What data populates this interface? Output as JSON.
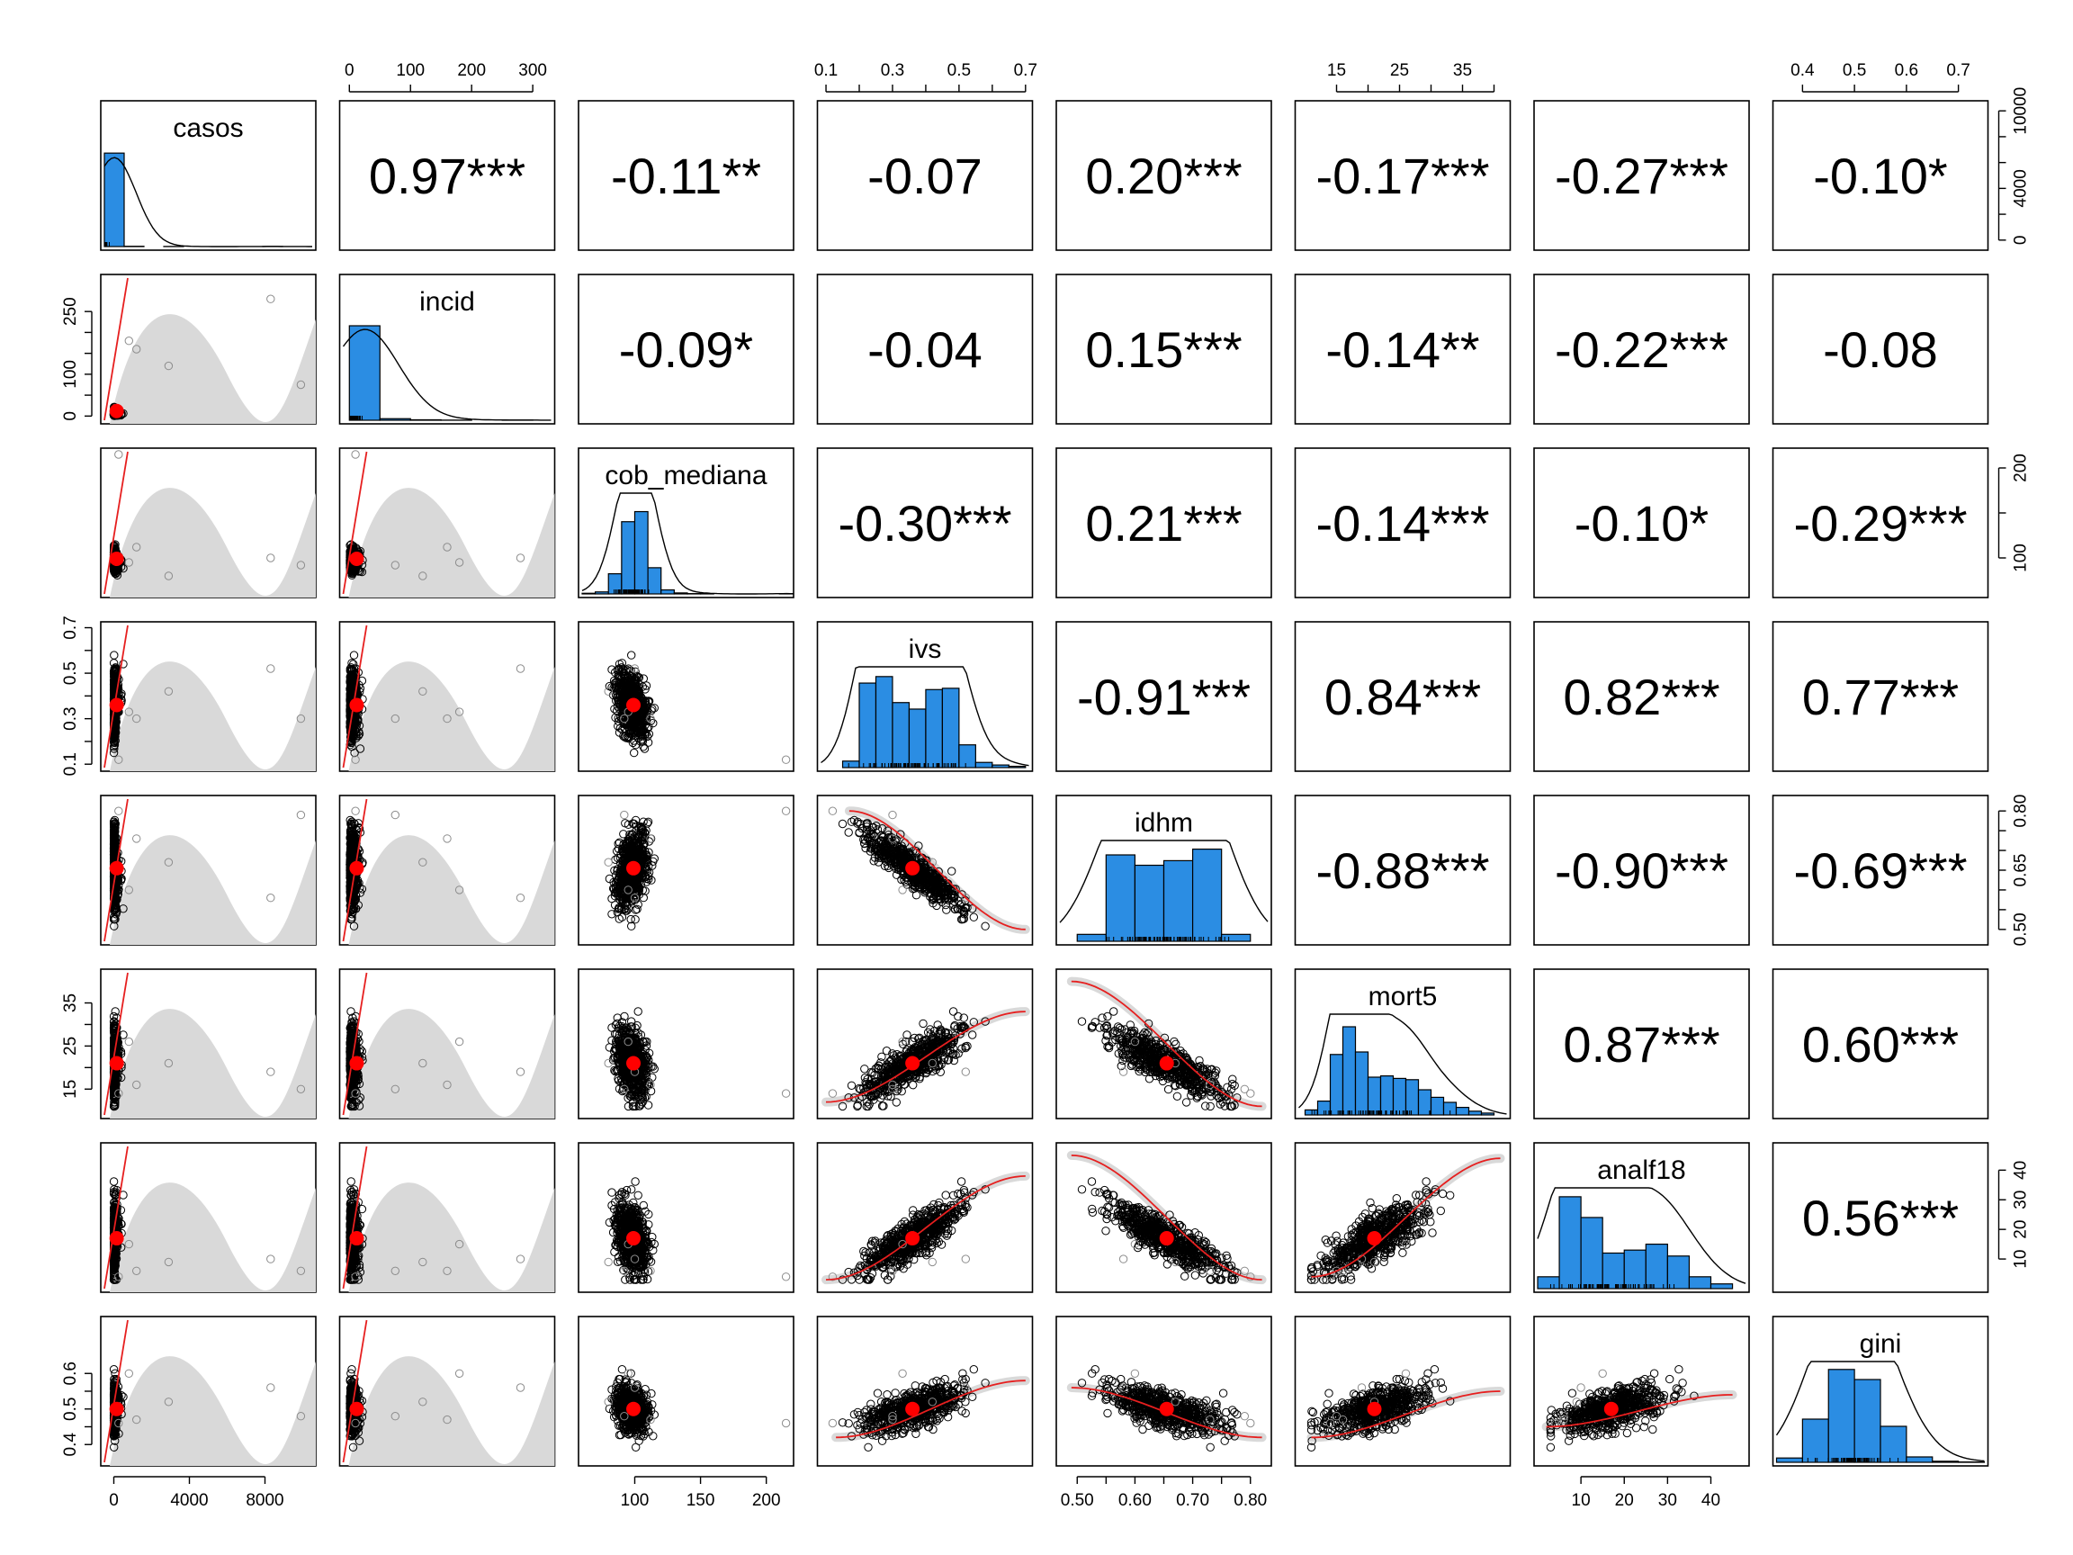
{
  "chart_data": {
    "type": "scatter",
    "variables": [
      "casos",
      "incid",
      "cob_mediana",
      "ivs",
      "idhm",
      "mort5",
      "analf18",
      "gini"
    ],
    "correlations": [
      {
        "row": "casos",
        "col": "incid",
        "value": "0.97***"
      },
      {
        "row": "casos",
        "col": "cob_mediana",
        "value": "-0.11**"
      },
      {
        "row": "casos",
        "col": "ivs",
        "value": "-0.07"
      },
      {
        "row": "casos",
        "col": "idhm",
        "value": "0.20***"
      },
      {
        "row": "casos",
        "col": "mort5",
        "value": "-0.17***"
      },
      {
        "row": "casos",
        "col": "analf18",
        "value": "-0.27***"
      },
      {
        "row": "casos",
        "col": "gini",
        "value": "-0.10*"
      },
      {
        "row": "incid",
        "col": "cob_mediana",
        "value": "-0.09*"
      },
      {
        "row": "incid",
        "col": "ivs",
        "value": "-0.04"
      },
      {
        "row": "incid",
        "col": "idhm",
        "value": "0.15***"
      },
      {
        "row": "incid",
        "col": "mort5",
        "value": "-0.14**"
      },
      {
        "row": "incid",
        "col": "analf18",
        "value": "-0.22***"
      },
      {
        "row": "incid",
        "col": "gini",
        "value": "-0.08"
      },
      {
        "row": "cob_mediana",
        "col": "ivs",
        "value": "-0.30***"
      },
      {
        "row": "cob_mediana",
        "col": "idhm",
        "value": "0.21***"
      },
      {
        "row": "cob_mediana",
        "col": "mort5",
        "value": "-0.14***"
      },
      {
        "row": "cob_mediana",
        "col": "analf18",
        "value": "-0.10*"
      },
      {
        "row": "cob_mediana",
        "col": "gini",
        "value": "-0.29***"
      },
      {
        "row": "ivs",
        "col": "idhm",
        "value": "-0.91***"
      },
      {
        "row": "ivs",
        "col": "mort5",
        "value": "0.84***"
      },
      {
        "row": "ivs",
        "col": "analf18",
        "value": "0.82***"
      },
      {
        "row": "ivs",
        "col": "gini",
        "value": "0.77***"
      },
      {
        "row": "idhm",
        "col": "mort5",
        "value": "-0.88***"
      },
      {
        "row": "idhm",
        "col": "analf18",
        "value": "-0.90***"
      },
      {
        "row": "idhm",
        "col": "gini",
        "value": "-0.69***"
      },
      {
        "row": "mort5",
        "col": "analf18",
        "value": "0.87***"
      },
      {
        "row": "mort5",
        "col": "gini",
        "value": "0.60***"
      },
      {
        "row": "analf18",
        "col": "gini",
        "value": "0.56***"
      }
    ],
    "axes": {
      "casos": {
        "range": [
          -500,
          10500
        ],
        "ticks": [
          "0",
          "4000",
          "8000"
        ],
        "tick_values": [
          0,
          4000,
          8000
        ],
        "side_ticks": [
          "0",
          "4000",
          "10000"
        ],
        "side_tick_values": [
          0,
          4000,
          10000
        ],
        "hist_range": [
          0,
          10500
        ],
        "side_extra_ticks": [
          2000,
          6000,
          8000
        ]
      },
      "incid": {
        "range": [
          -10,
          330
        ],
        "ticks": [
          "0",
          "100",
          "200",
          "300"
        ],
        "tick_values": [
          0,
          100,
          200,
          300
        ],
        "side_ticks": [
          "0",
          "100",
          "250"
        ],
        "side_tick_values": [
          0,
          100,
          250
        ],
        "side_extra_ticks": [
          50,
          150,
          200
        ]
      },
      "cob_mediana": {
        "range": [
          60,
          218
        ],
        "ticks": [
          "100",
          "150",
          "200"
        ],
        "tick_values": [
          100,
          150,
          200
        ],
        "side_ticks": [
          "100",
          "200"
        ],
        "side_tick_values": [
          100,
          200
        ],
        "side_extra_ticks": [
          150
        ]
      },
      "ivs": {
        "range": [
          0.085,
          0.71
        ],
        "ticks": [
          "0.1",
          "0.3",
          "0.5",
          "0.7"
        ],
        "tick_values": [
          0.1,
          0.3,
          0.5,
          0.7
        ],
        "extra_ticks": [
          0.2,
          0.4,
          0.6
        ],
        "side_ticks": [
          "0.1",
          "0.3",
          "0.5",
          "0.7"
        ],
        "side_tick_values": [
          0.1,
          0.3,
          0.5,
          0.7
        ],
        "side_extra_ticks": [
          0.2,
          0.4,
          0.6
        ]
      },
      "idhm": {
        "range": [
          0.47,
          0.83
        ],
        "ticks": [
          "0.50",
          "0.60",
          "0.70",
          "0.80"
        ],
        "tick_values": [
          0.5,
          0.6,
          0.7,
          0.8
        ],
        "extra_ticks": [
          0.55,
          0.65,
          0.75
        ],
        "side_ticks": [
          "0.50",
          "0.65",
          "0.80"
        ],
        "side_tick_values": [
          0.5,
          0.65,
          0.8
        ],
        "side_extra_ticks": [
          0.55,
          0.6,
          0.7,
          0.75
        ]
      },
      "mort5": {
        "range": [
          9,
          42
        ],
        "ticks": [
          "15",
          "25",
          "35"
        ],
        "tick_values": [
          15,
          25,
          35
        ],
        "extra_ticks": [
          20,
          30,
          40
        ],
        "side_ticks": [
          "15",
          "25",
          "35"
        ],
        "side_tick_values": [
          15,
          25,
          35
        ],
        "side_extra_ticks": [
          20,
          30
        ]
      },
      "analf18": {
        "range": [
          0,
          48
        ],
        "ticks": [
          "10",
          "20",
          "30",
          "40"
        ],
        "tick_values": [
          10,
          20,
          30,
          40
        ],
        "side_ticks": [
          "10",
          "20",
          "30",
          "40"
        ],
        "side_tick_values": [
          10,
          20,
          30,
          40
        ],
        "side_extra_ticks": []
      },
      "gini": {
        "range": [
          0.35,
          0.75
        ],
        "ticks": [
          "0.4",
          "0.5",
          "0.6",
          "0.7"
        ],
        "tick_values": [
          0.4,
          0.5,
          0.6,
          0.7
        ],
        "side_ticks": [
          "0.4",
          "0.5",
          "0.6"
        ],
        "side_tick_values": [
          0.4,
          0.5,
          0.6
        ],
        "side_extra_ticks": [
          0.45,
          0.55
        ]
      }
    },
    "histograms": {
      "casos": {
        "breaks": [
          0,
          1000,
          2000,
          3000,
          4000,
          5000,
          6000,
          7000,
          8000,
          9000,
          10000
        ],
        "counts": [
          612,
          2,
          0,
          1,
          0,
          0,
          0,
          0,
          1,
          0
        ],
        "ymax": 660
      },
      "incid": {
        "breaks": [
          0,
          50,
          100,
          150,
          200,
          250,
          300
        ],
        "counts": [
          600,
          10,
          3,
          1,
          0,
          1
        ],
        "ymax": 640
      },
      "cob_mediana": {
        "breaks": [
          60,
          70,
          80,
          90,
          100,
          110,
          120,
          130,
          140,
          150,
          160,
          170,
          180,
          190,
          200,
          210,
          220
        ],
        "counts": [
          2,
          6,
          60,
          215,
          245,
          78,
          12,
          3,
          1,
          1,
          0,
          0,
          0,
          0,
          0,
          1
        ],
        "ymax": 300
      },
      "ivs": {
        "breaks": [
          0.15,
          0.2,
          0.25,
          0.3,
          0.35,
          0.4,
          0.45,
          0.5,
          0.55,
          0.6,
          0.65,
          0.7
        ],
        "counts": [
          10,
          130,
          140,
          100,
          90,
          120,
          122,
          35,
          8,
          4,
          2
        ],
        "ymax": 155
      },
      "idhm": {
        "breaks": [
          0.5,
          0.55,
          0.6,
          0.65,
          0.7,
          0.75,
          0.8
        ],
        "counts": [
          12,
          150,
          132,
          140,
          160,
          12
        ],
        "ymax": 175
      },
      "mort5": {
        "breaks": [
          10,
          12,
          14,
          16,
          18,
          20,
          22,
          24,
          26,
          28,
          30,
          32,
          34,
          36,
          38,
          40
        ],
        "counts": [
          8,
          22,
          96,
          140,
          100,
          60,
          62,
          58,
          56,
          40,
          28,
          20,
          12,
          6,
          3
        ],
        "ymax": 160
      },
      "analf18": {
        "breaks": [
          0,
          5,
          10,
          15,
          20,
          25,
          30,
          35,
          40,
          45
        ],
        "counts": [
          20,
          155,
          120,
          60,
          65,
          75,
          55,
          20,
          8
        ],
        "ymax": 170
      },
      "gini": {
        "breaks": [
          0.35,
          0.4,
          0.45,
          0.5,
          0.55,
          0.6,
          0.65,
          0.7,
          0.75
        ],
        "counts": [
          12,
          120,
          258,
          230,
          100,
          15,
          3,
          1
        ],
        "ymax": 280
      }
    }
  },
  "colors": {
    "histogram_fill": "#2b8de3",
    "fit_line": "#e61f1f",
    "confidence_band": "#d9d9d9",
    "point": "#000000",
    "centroid": "#ff0000"
  }
}
